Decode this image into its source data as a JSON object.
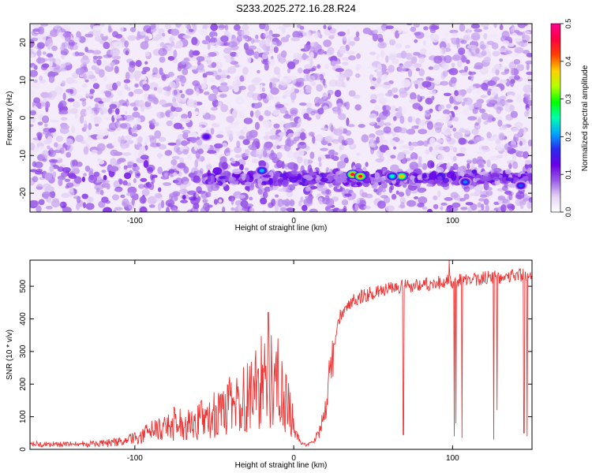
{
  "figure": {
    "title": "S233.2025.272.16.28.R24"
  },
  "chart_data": [
    {
      "type": "heatmap",
      "title": "S233.2025.272.16.28.R24",
      "xlabel": "Height of straight line (km)",
      "ylabel": "Frequency (Hz)",
      "xlim": [
        -166,
        150
      ],
      "ylim": [
        -25,
        25
      ],
      "xticks": [
        -100,
        0,
        100
      ],
      "yticks": [
        -20,
        -10,
        0,
        10,
        20
      ],
      "colorbar": {
        "label": "Normalized spectral amplitude",
        "range": [
          0,
          0.5
        ],
        "ticks": [
          "0.0",
          "0.1",
          "0.2",
          "0.3",
          "0.4",
          "0.5"
        ],
        "colors": [
          "#ffffff",
          "#e4d2f4",
          "#9a5ce6",
          "#6a00e6",
          "#2a28f0",
          "#00a8ff",
          "#00ffb0",
          "#00ff00",
          "#b4ff00",
          "#ffd000",
          "#ff4000",
          "#ff0040",
          "#ff0090"
        ]
      },
      "features": [
        {
          "x_range": [
            -166,
            150
          ],
          "freq": -16,
          "amplitude": 0.12,
          "note": "band"
        },
        {
          "x": 37,
          "freq": -15,
          "amplitude": 0.45
        },
        {
          "x": 42,
          "freq": -15.5,
          "amplitude": 0.45
        },
        {
          "x": 68,
          "freq": -15.5,
          "amplitude": 0.38
        },
        {
          "x": 62,
          "freq": -15.5,
          "amplitude": 0.25
        },
        {
          "x": -20,
          "freq": -14,
          "amplitude": 0.22
        },
        {
          "x": -55,
          "freq": -5,
          "amplitude": 0.15
        },
        {
          "x": 108,
          "freq": -17,
          "amplitude": 0.2
        },
        {
          "x": 143,
          "freq": -18,
          "amplitude": 0.18
        }
      ]
    },
    {
      "type": "line",
      "xlabel": "Height of straight line (km)",
      "ylabel": "SNR (10 * v/v)",
      "xlim": [
        -166,
        150
      ],
      "ylim": [
        0,
        580
      ],
      "xticks": [
        -100,
        0,
        100
      ],
      "yticks": [
        0,
        100,
        200,
        300,
        400,
        500
      ],
      "color": "#ee3333",
      "x": [
        -166,
        -140,
        -120,
        -105,
        -100,
        -90,
        -80,
        -70,
        -60,
        -50,
        -45,
        -40,
        -35,
        -30,
        -25,
        -20,
        -16,
        -12,
        -8,
        -4,
        0,
        4,
        8,
        12,
        16,
        20,
        22,
        24,
        26,
        28,
        30,
        35,
        40,
        50,
        60,
        70,
        80,
        90,
        100,
        110,
        120,
        130,
        140,
        150
      ],
      "y": [
        15,
        15,
        18,
        25,
        35,
        55,
        65,
        70,
        75,
        90,
        100,
        115,
        125,
        140,
        160,
        180,
        170,
        160,
        150,
        120,
        60,
        25,
        12,
        20,
        50,
        120,
        200,
        280,
        340,
        380,
        420,
        450,
        465,
        480,
        490,
        500,
        505,
        510,
        515,
        520,
        525,
        530,
        535,
        535
      ],
      "dropouts": [
        {
          "x": 69,
          "y": 45
        },
        {
          "x": 101,
          "y": 40
        },
        {
          "x": 102,
          "y": 80
        },
        {
          "x": 106,
          "y": 35
        },
        {
          "x": 126,
          "y": 30
        },
        {
          "x": 128,
          "y": 120
        },
        {
          "x": 145,
          "y": 50
        },
        {
          "x": 147,
          "y": 40
        }
      ],
      "peaks": [
        {
          "x": -16,
          "y": 420
        },
        {
          "x": -14,
          "y": 350
        },
        {
          "x": -10,
          "y": 340
        },
        {
          "x": 98,
          "y": 580
        }
      ]
    }
  ]
}
